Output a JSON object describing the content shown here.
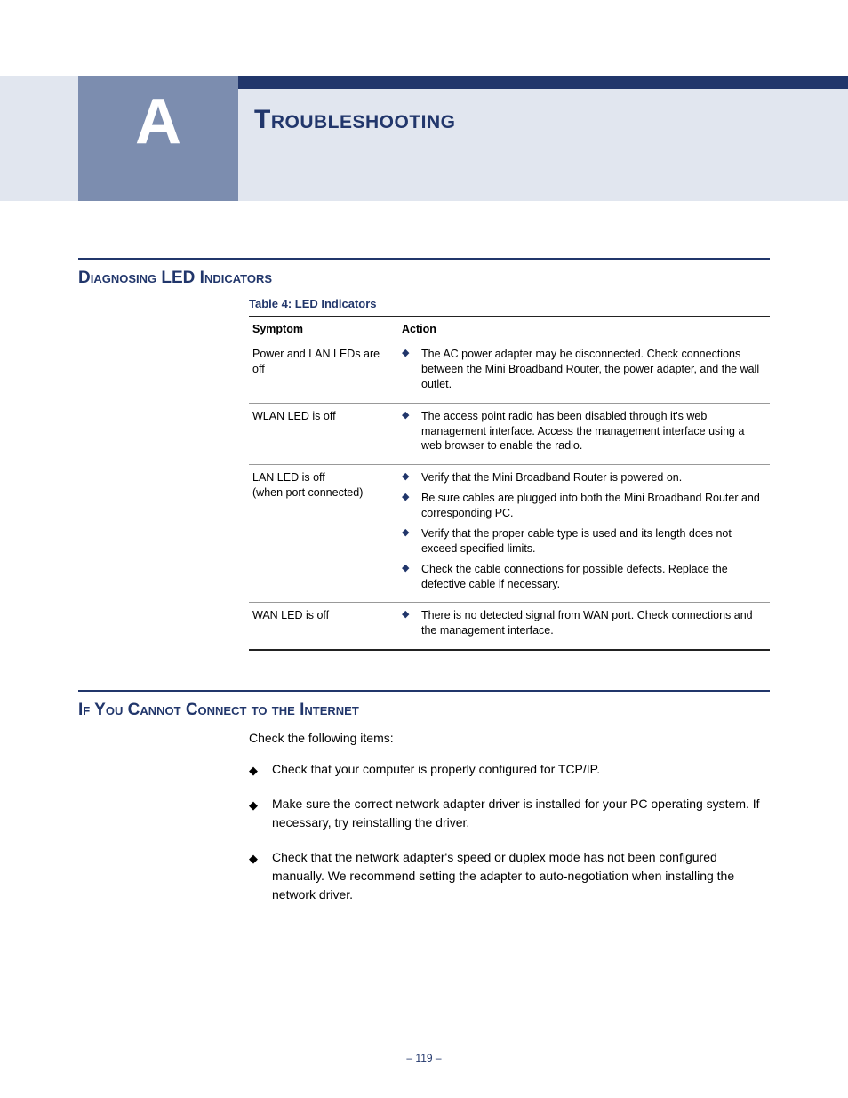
{
  "colors": {
    "brand_dark": "#21366b",
    "band_light": "#e1e6ef",
    "band_mid": "#7c8daf",
    "rule": "#21366b",
    "text": "#000000"
  },
  "header": {
    "appendix_letter": "A",
    "title": "Troubleshooting"
  },
  "section1": {
    "heading": "Diagnosing LED Indicators",
    "table_caption": "Table 4: LED Indicators",
    "columns": [
      "Symptom",
      "Action"
    ],
    "rows": [
      {
        "symptom": "Power and LAN LEDs are off",
        "actions": [
          "The AC power adapter may be disconnected. Check connections between the Mini Broadband Router, the power adapter, and the wall outlet."
        ]
      },
      {
        "symptom": "WLAN LED is off",
        "actions": [
          "The access point radio has been disabled through it's web management interface. Access the management interface using a web browser to enable the radio."
        ]
      },
      {
        "symptom": "LAN LED is off\n(when port connected)",
        "actions": [
          "Verify that the Mini Broadband Router is powered on.",
          "Be sure cables are plugged into both the Mini Broadband Router and corresponding PC.",
          "Verify that the proper cable type is used and its length does not exceed specified limits.",
          "Check the cable connections for possible defects. Replace the defective cable if necessary."
        ]
      },
      {
        "symptom": "WAN LED is off",
        "actions": [
          "There is no detected signal from WAN port. Check connections and the management interface."
        ]
      }
    ]
  },
  "section2": {
    "heading": "If You Cannot Connect to the Internet",
    "intro": "Check the following items:",
    "items": [
      "Check that your computer is properly configured for TCP/IP.",
      "Make sure the correct network adapter driver is installed for your PC operating system. If necessary, try reinstalling the driver.",
      "Check that the network adapter's speed or duplex mode has not been configured manually. We recommend setting the adapter to auto-negotiation when installing the network driver."
    ]
  },
  "page_number": "– 119 –"
}
